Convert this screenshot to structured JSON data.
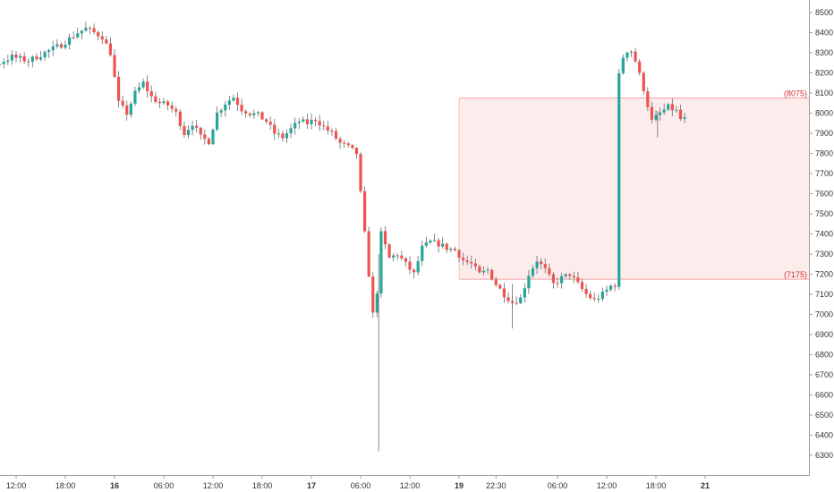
{
  "chart_data": {
    "type": "candlestick",
    "title": "",
    "y_axis": {
      "position": "right",
      "range": [
        6200,
        8550
      ],
      "ticks": [
        8500,
        8400,
        8300,
        8200,
        8100,
        8000,
        7900,
        7800,
        7700,
        7600,
        7500,
        7400,
        7300,
        7200,
        7100,
        7000,
        6900,
        6800,
        6700,
        6600,
        6500,
        6400,
        6300
      ]
    },
    "x_axis": {
      "unit": "hours",
      "range": [
        -11.5,
        140
      ],
      "ticks": [
        {
          "h": 0,
          "label": "12:00",
          "bold": false
        },
        {
          "h": 6,
          "label": "18:00",
          "bold": false
        },
        {
          "h": 12,
          "label": "16",
          "bold": true
        },
        {
          "h": 18,
          "label": "06:00",
          "bold": false
        },
        {
          "h": 24,
          "label": "12:00",
          "bold": false
        },
        {
          "h": 30,
          "label": "18:00",
          "bold": false
        },
        {
          "h": 36,
          "label": "17",
          "bold": true
        },
        {
          "h": 42,
          "label": "06:00",
          "bold": false
        },
        {
          "h": 48,
          "label": "12:00",
          "bold": false
        },
        {
          "h": 54,
          "label": "19",
          "bold": true
        },
        {
          "h": 58.5,
          "label": "22:30",
          "bold": false
        },
        {
          "h": 66,
          "label": "06:00",
          "bold": false
        },
        {
          "h": 72,
          "label": "12:00",
          "bold": false
        },
        {
          "h": 78,
          "label": "18:00",
          "bold": false
        },
        {
          "h": 84,
          "label": "21",
          "bold": true
        }
      ]
    },
    "grid": false,
    "colors": {
      "up": "#26a69a",
      "down": "#ef5350",
      "wick": "#6b6b6b",
      "zone_fill": "#fdeaea",
      "zone_line": "#f2a0a0",
      "zone_label": "#d32f2f"
    },
    "zone": {
      "h_start": 54,
      "top": 8075,
      "bottom": 7175,
      "top_label": "(8075)",
      "bottom_label": "(7175)"
    },
    "waypoints": [
      [
        -12,
        8000
      ],
      [
        -10,
        8020
      ],
      [
        -8,
        8080
      ],
      [
        -6,
        8150
      ],
      [
        -4,
        8200
      ],
      [
        -3,
        8300
      ],
      [
        -2,
        8240
      ],
      [
        0,
        8280
      ],
      [
        2,
        8260
      ],
      [
        4,
        8300
      ],
      [
        6,
        8340
      ],
      [
        8,
        8400
      ],
      [
        9,
        8420
      ],
      [
        10,
        8400
      ],
      [
        11,
        8380
      ],
      [
        12,
        8300
      ],
      [
        13,
        8050
      ],
      [
        14,
        8000
      ],
      [
        15,
        8100
      ],
      [
        16,
        8150
      ],
      [
        17,
        8080
      ],
      [
        18,
        8050
      ],
      [
        19,
        8040
      ],
      [
        20,
        8000
      ],
      [
        21,
        7900
      ],
      [
        22,
        7950
      ],
      [
        23,
        7880
      ],
      [
        24,
        7860
      ],
      [
        25,
        8000
      ],
      [
        26,
        8050
      ],
      [
        27,
        8080
      ],
      [
        28,
        8020
      ],
      [
        29,
        8000
      ],
      [
        30,
        7990
      ],
      [
        31,
        7960
      ],
      [
        32,
        7900
      ],
      [
        33,
        7880
      ],
      [
        34,
        7920
      ],
      [
        35,
        7960
      ],
      [
        36,
        7950
      ],
      [
        37,
        7970
      ],
      [
        38,
        7930
      ],
      [
        39,
        7900
      ],
      [
        40,
        7850
      ],
      [
        41,
        7830
      ],
      [
        42,
        7800
      ],
      [
        43,
        7400
      ],
      [
        44,
        7000
      ],
      [
        44.3,
        6950
      ],
      [
        44.7,
        7280
      ],
      [
        45,
        7400
      ],
      [
        46,
        7280
      ],
      [
        47,
        7300
      ],
      [
        48,
        7250
      ],
      [
        49,
        7200
      ],
      [
        50,
        7330
      ],
      [
        51,
        7360
      ],
      [
        52,
        7350
      ],
      [
        53,
        7330
      ],
      [
        54,
        7320
      ],
      [
        55,
        7270
      ],
      [
        56,
        7250
      ],
      [
        57,
        7200
      ],
      [
        58,
        7220
      ],
      [
        59,
        7150
      ],
      [
        60,
        7100
      ],
      [
        61,
        7060
      ],
      [
        62,
        7080
      ],
      [
        63,
        7200
      ],
      [
        64,
        7270
      ],
      [
        65,
        7220
      ],
      [
        66,
        7150
      ],
      [
        67,
        7180
      ],
      [
        68,
        7200
      ],
      [
        69,
        7150
      ],
      [
        70,
        7100
      ],
      [
        71,
        7070
      ],
      [
        72,
        7100
      ],
      [
        73,
        7140
      ],
      [
        73.6,
        7150
      ],
      [
        73.8,
        8150
      ],
      [
        74.5,
        8280
      ],
      [
        75.3,
        8330
      ],
      [
        76,
        8260
      ],
      [
        77,
        8120
      ],
      [
        78,
        7960
      ],
      [
        79,
        8000
      ],
      [
        80,
        8030
      ],
      [
        81,
        8010
      ],
      [
        81.5,
        7970
      ]
    ],
    "outlier_wicks": [
      {
        "h": 44.2,
        "high": 7300,
        "low": 6320
      },
      {
        "h": 78.2,
        "high": 8010,
        "low": 7880
      },
      {
        "h": 60.5,
        "high": 7150,
        "low": 6930
      }
    ]
  }
}
